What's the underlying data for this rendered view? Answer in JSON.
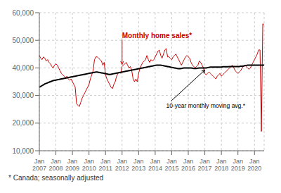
{
  "chart_data": {
    "type": "line",
    "categories": [
      "Jan\n2007",
      null,
      null,
      null,
      null,
      null,
      null,
      null,
      null,
      null,
      null,
      null,
      "Jan\n2008",
      null,
      null,
      null,
      null,
      null,
      null,
      null,
      null,
      null,
      null,
      null,
      "Jan\n2009",
      null,
      null,
      null,
      null,
      null,
      null,
      null,
      null,
      null,
      null,
      null,
      "Jan\n2010",
      null,
      null,
      null,
      null,
      null,
      null,
      null,
      null,
      null,
      null,
      null,
      "Jan\n2011",
      null,
      null,
      null,
      null,
      null,
      null,
      null,
      null,
      null,
      null,
      null,
      "Jan\n2012",
      null,
      null,
      null,
      null,
      null,
      null,
      null,
      null,
      null,
      null,
      null,
      "Jan\n2013",
      null,
      null,
      null,
      null,
      null,
      null,
      null,
      null,
      null,
      null,
      null,
      "Jan\n2014",
      null,
      null,
      null,
      null,
      null,
      null,
      null,
      null,
      null,
      null,
      null,
      "Jan\n2015",
      null,
      null,
      null,
      null,
      null,
      null,
      null,
      null,
      null,
      null,
      null,
      "Jan\n2016",
      null,
      null,
      null,
      null,
      null,
      null,
      null,
      null,
      null,
      null,
      null,
      "Jan\n2017",
      null,
      null,
      null,
      null,
      null,
      null,
      null,
      null,
      null,
      null,
      null,
      "Jan\n2018",
      null,
      null,
      null,
      null,
      null,
      null,
      null,
      null,
      null,
      null,
      null,
      "Jan\n2019",
      null,
      null,
      null,
      null,
      null,
      null,
      null,
      null,
      null,
      null,
      null,
      "Jan\n2020",
      null,
      null,
      null,
      null,
      null,
      null,
      null
    ],
    "series": [
      {
        "name": "Monthly home sales*",
        "color": "#cc0000",
        "values": [
          44500,
          43500,
          43000,
          44000,
          43500,
          42500,
          43000,
          42000,
          41500,
          40500,
          40000,
          41000,
          41500,
          41000,
          40000,
          39000,
          38000,
          37500,
          37000,
          36500,
          37000,
          36000,
          35500,
          36000,
          35000,
          34000,
          33000,
          27000,
          26500,
          26000,
          27500,
          29000,
          30000,
          31000,
          32000,
          33000,
          34000,
          36000,
          37500,
          39000,
          43000,
          44000,
          44000,
          43500,
          43000,
          42500,
          41000,
          42000,
          37500,
          36000,
          35000,
          34000,
          33000,
          32500,
          34000,
          35000,
          37000,
          38000,
          38500,
          38000,
          40500,
          41000,
          41500,
          42000,
          41000,
          40000,
          40500,
          39000,
          36000,
          35000,
          36000,
          35000,
          38000,
          40000,
          41000,
          42000,
          42500,
          43000,
          44500,
          43000,
          42000,
          43000,
          42500,
          43000,
          44000,
          45000,
          46000,
          46500,
          44500,
          43500,
          45000,
          46500,
          47000,
          44000,
          44000,
          43500,
          43000,
          44000,
          44500,
          45000,
          44000,
          43000,
          42000,
          41000,
          42000,
          43000,
          44000,
          44500,
          44000,
          43500,
          42000,
          41000,
          40500,
          40000,
          40500,
          41000,
          42500,
          42000,
          41000,
          40000,
          38000,
          37500,
          38000,
          38500,
          38000,
          37500,
          37000,
          36500,
          36000,
          37000,
          37500,
          38000,
          37000,
          37500,
          38000,
          38500,
          39000,
          39500,
          40000,
          40500,
          41000,
          40000,
          39000,
          38500,
          38000,
          38500,
          39000,
          40000,
          40500,
          41000,
          40500,
          40000,
          39500,
          40000,
          41000,
          42000,
          43000,
          44000,
          45000,
          46500,
          46500,
          17000,
          56000,
          55500
        ]
      },
      {
        "name": "10-year monthly moving avg.*",
        "color": "#000000",
        "values": [
          33000,
          33300,
          33600,
          33900,
          34200,
          34400,
          34600,
          34800,
          35000,
          35200,
          35400,
          35500,
          35600,
          35700,
          35800,
          35900,
          36000,
          36100,
          36200,
          36300,
          36400,
          36500,
          36600,
          36700,
          36800,
          36900,
          37000,
          37100,
          37200,
          37300,
          37400,
          37500,
          37600,
          37700,
          37800,
          37900,
          38000,
          38100,
          38200,
          38300,
          38400,
          38500,
          38500,
          38400,
          38300,
          38200,
          38100,
          38000,
          37900,
          37800,
          37700,
          37600,
          37700,
          37800,
          37900,
          38000,
          38100,
          38200,
          38300,
          38400,
          38500,
          38600,
          38700,
          38800,
          38900,
          39000,
          39100,
          39200,
          39300,
          39400,
          39500,
          39600,
          39700,
          39800,
          39900,
          40000,
          40100,
          40200,
          40300,
          40400,
          40500,
          40600,
          40700,
          40800,
          40900,
          41000,
          41000,
          41000,
          41000,
          40900,
          40800,
          40700,
          40600,
          40500,
          40400,
          40300,
          40200,
          40100,
          40000,
          39900,
          39800,
          39700,
          39700,
          39800,
          39900,
          40000,
          40000,
          40000,
          40000,
          40000,
          40000,
          39900,
          39800,
          39800,
          39800,
          39900,
          40000,
          40000,
          40000,
          40000,
          40000,
          40000,
          40100,
          40200,
          40300,
          40300,
          40300,
          40300,
          40300,
          40300,
          40300,
          40300,
          40300,
          40400,
          40400,
          40400,
          40400,
          40400,
          40500,
          40500,
          40500,
          40500,
          40500,
          40500,
          40500,
          40500,
          40600,
          40600,
          40700,
          40800,
          40900,
          41000,
          41000,
          41000,
          41000,
          41000,
          41000,
          41000,
          41000,
          41000,
          41000,
          41000,
          41000,
          41000
        ]
      }
    ],
    "annotations": [
      "* Canada; seasonally adjusted"
    ],
    "ylim": [
      10000,
      60000
    ],
    "yticks": [
      {
        "value": 10000,
        "label": "10,000"
      },
      {
        "value": 20000,
        "label": "20,000"
      },
      {
        "value": 30000,
        "label": "30,000"
      },
      {
        "value": 40000,
        "label": "40,000"
      },
      {
        "value": 50000,
        "label": "50,000"
      },
      {
        "value": 60000,
        "label": "60,000"
      }
    ],
    "grid": true
  }
}
